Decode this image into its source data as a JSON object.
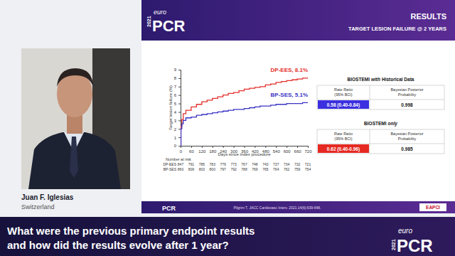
{
  "chart_data": {
    "type": "line",
    "y_label": "Target lesion failure (%)",
    "x_label": "Days since index procedure",
    "x": [
      0,
      2,
      7,
      15,
      30,
      60,
      90,
      120,
      150,
      180,
      210,
      240,
      270,
      300,
      330,
      360,
      390,
      420,
      450,
      480,
      510,
      540,
      570,
      600,
      630,
      660,
      690,
      720
    ],
    "series": [
      {
        "name": "DP-EES",
        "color": "#e3302b",
        "line_style": "step",
        "values": [
          0,
          2.3,
          3.1,
          3.8,
          4.2,
          4.6,
          4.9,
          5.2,
          5.4,
          5.6,
          5.8,
          6.0,
          6.2,
          6.3,
          6.5,
          6.7,
          6.8,
          6.9,
          7.0,
          7.2,
          7.3,
          7.5,
          7.6,
          7.7,
          7.8,
          7.9,
          8.0,
          8.1
        ]
      },
      {
        "name": "BP-SES",
        "color": "#3a33c4",
        "line_style": "step",
        "values": [
          0,
          2.0,
          2.6,
          3.0,
          3.3,
          3.4,
          3.6,
          3.7,
          3.8,
          3.9,
          4.0,
          4.1,
          4.2,
          4.3,
          4.3,
          4.4,
          4.5,
          4.6,
          4.7,
          4.7,
          4.8,
          4.9,
          4.9,
          5.0,
          5.0,
          5.0,
          5.1,
          5.1
        ]
      }
    ],
    "annotations": [
      "DP-EES, 8.1%",
      "BP-SES, 5.1%"
    ],
    "xlim": [
      0,
      720
    ],
    "xticks": [
      0,
      60,
      120,
      180,
      240,
      300,
      360,
      420,
      480,
      540,
      600,
      660,
      720
    ],
    "ylim": [
      0,
      9
    ],
    "yticks": [
      0,
      1,
      2,
      3,
      4,
      5,
      6,
      7,
      8,
      9
    ],
    "grid": false,
    "number_at_risk": {
      "title": "Number at risk",
      "rows": [
        {
          "name": "DP-EES",
          "values": [
            847,
            791,
            785,
            783,
            779,
            773,
            767,
            748,
            743,
            737,
            734,
            732,
            721
          ]
        },
        {
          "name": "BP-SES",
          "values": [
            860,
            809,
            803,
            800,
            797,
            792,
            788,
            769,
            765,
            764,
            762,
            759,
            754
          ]
        }
      ]
    }
  },
  "speaker": {
    "name": "Juan F. Iglesias",
    "country": "Switzerland"
  },
  "slide": {
    "logo": {
      "year": "2021",
      "brand": "euro",
      "mark": "PCR"
    },
    "title": "RESULTS",
    "subtitle": "TARGET LESION FAILURE @ 2 YEARS",
    "tables": [
      {
        "title": [
          {
            "text": "BIOSTEMI",
            "emphasis": false
          },
          {
            "text": "with",
            "emphasis": true
          },
          {
            "text": "Historical Data",
            "emphasis": false
          }
        ],
        "headers": [
          [
            "Rate Ratio",
            "(95% BCI)"
          ],
          [
            "Bayesian Posterior",
            "Probability"
          ]
        ],
        "row": [
          "0.58 (0.40-0.84)",
          "0.998"
        ],
        "color": "#3b2fe0"
      },
      {
        "title": [
          {
            "text": "BIOSTEMI",
            "emphasis": false
          },
          {
            "text": "only",
            "emphasis": true
          }
        ],
        "headers": [
          [
            "Rate Ratio",
            "(95% BCI)"
          ],
          [
            "Bayesian Posterior",
            "Probability"
          ]
        ],
        "row": [
          "0.62 (0.40-0.96)",
          "0.985"
        ],
        "color": "#e52a22"
      }
    ],
    "footer_logo": "PCR",
    "reference": "Pilgrim T, JACC Cardiovasc Interv. 2021;14(6):639-648.",
    "footer_badge": "EAPCI"
  },
  "caption": [
    "What were the previous primary endpoint results",
    "and how did the results evolve after 1 year?"
  ],
  "corner_logo": {
    "year": "2021",
    "brand": "euro",
    "mark": "PCR"
  }
}
